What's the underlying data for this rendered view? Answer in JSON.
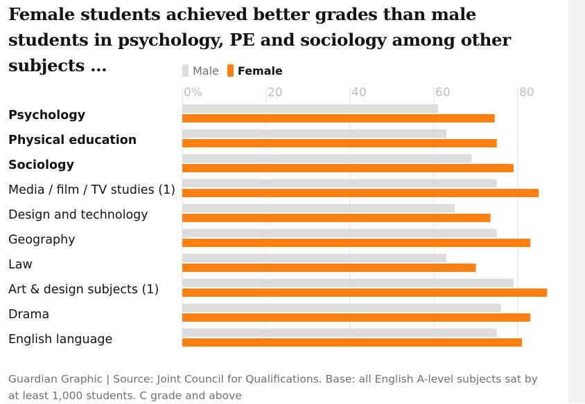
{
  "title": "Female students achieved better grades than male students in psychology, PE and sociology among other subjects …",
  "footer": "Guardian Graphic | Source: Joint Council for Qualifications. Base: all English A-level subjects sat by at least 1,000 students. C grade and above",
  "colors": {
    "male": "#dcdcdc",
    "female": "#ff7f0f",
    "grid": "#dcdcdc",
    "tick": "#bdbdbd"
  },
  "chart_data": {
    "type": "bar",
    "orientation": "horizontal",
    "title": "Female students achieved better grades than male students in psychology, PE and sociology among other subjects …",
    "xlim": [
      0,
      88
    ],
    "xticks": [
      0,
      20,
      40,
      60,
      80
    ],
    "xtick_labels": [
      "0%",
      "20",
      "40",
      "60",
      "80"
    ],
    "grid": true,
    "legend_position": "top",
    "categories": [
      "Psychology",
      "Physical education",
      "Sociology",
      "Media / film / TV studies (1)",
      "Design and technology",
      "Geography",
      "Law",
      "Art & design subjects (1)",
      "Drama",
      "English language"
    ],
    "bold_categories": [
      "Psychology",
      "Physical education",
      "Sociology"
    ],
    "series": [
      {
        "name": "Male",
        "values": [
          61,
          63,
          69,
          75,
          65,
          75,
          63,
          79,
          76,
          75
        ]
      },
      {
        "name": "Female",
        "values": [
          74.5,
          75,
          79,
          85,
          73.5,
          83,
          70,
          87,
          83,
          81
        ]
      }
    ]
  }
}
